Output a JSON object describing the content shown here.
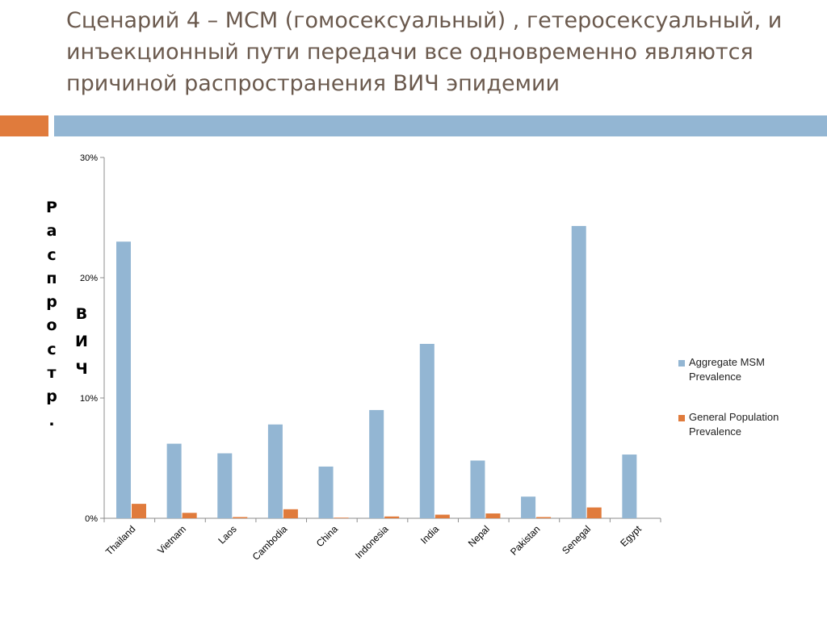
{
  "slide": {
    "title_lines": [
      "Сценарий 4 – МСМ (гомосексуальный) , гетеросексуальный, и",
      "инъекционный пути передачи все одновременно являются",
      "причиной распространения ВИЧ эпидемии"
    ]
  },
  "colors": {
    "accent_orange": "#e07b3c",
    "accent_blue": "#93b6d3"
  },
  "chart_data": {
    "type": "bar",
    "categories": [
      "Thailand",
      "Vietnam",
      "Laos",
      "Cambodia",
      "China",
      "Indonesia",
      "India",
      "Nepal",
      "Pakistan",
      "Senegal",
      "Egypt"
    ],
    "series": [
      {
        "name": "Aggregate MSM Prevalence",
        "color": "#93b6d3",
        "values": [
          23.0,
          6.2,
          5.4,
          7.8,
          4.3,
          9.0,
          14.5,
          4.8,
          1.8,
          24.3,
          5.3
        ]
      },
      {
        "name": "General Population Prevalence",
        "color": "#e07b3c",
        "values": [
          1.2,
          0.45,
          0.1,
          0.75,
          0.05,
          0.15,
          0.3,
          0.4,
          0.1,
          0.9,
          0
        ]
      }
    ],
    "ylim": [
      0,
      30
    ],
    "yticks": [
      0,
      10,
      20,
      30
    ],
    "ytick_labels": [
      "0%",
      "10%",
      "20%",
      "30%"
    ],
    "ylabel_parts": [
      "Распростр.",
      "ВИЧ"
    ],
    "legend_position": "right",
    "grid": false
  }
}
